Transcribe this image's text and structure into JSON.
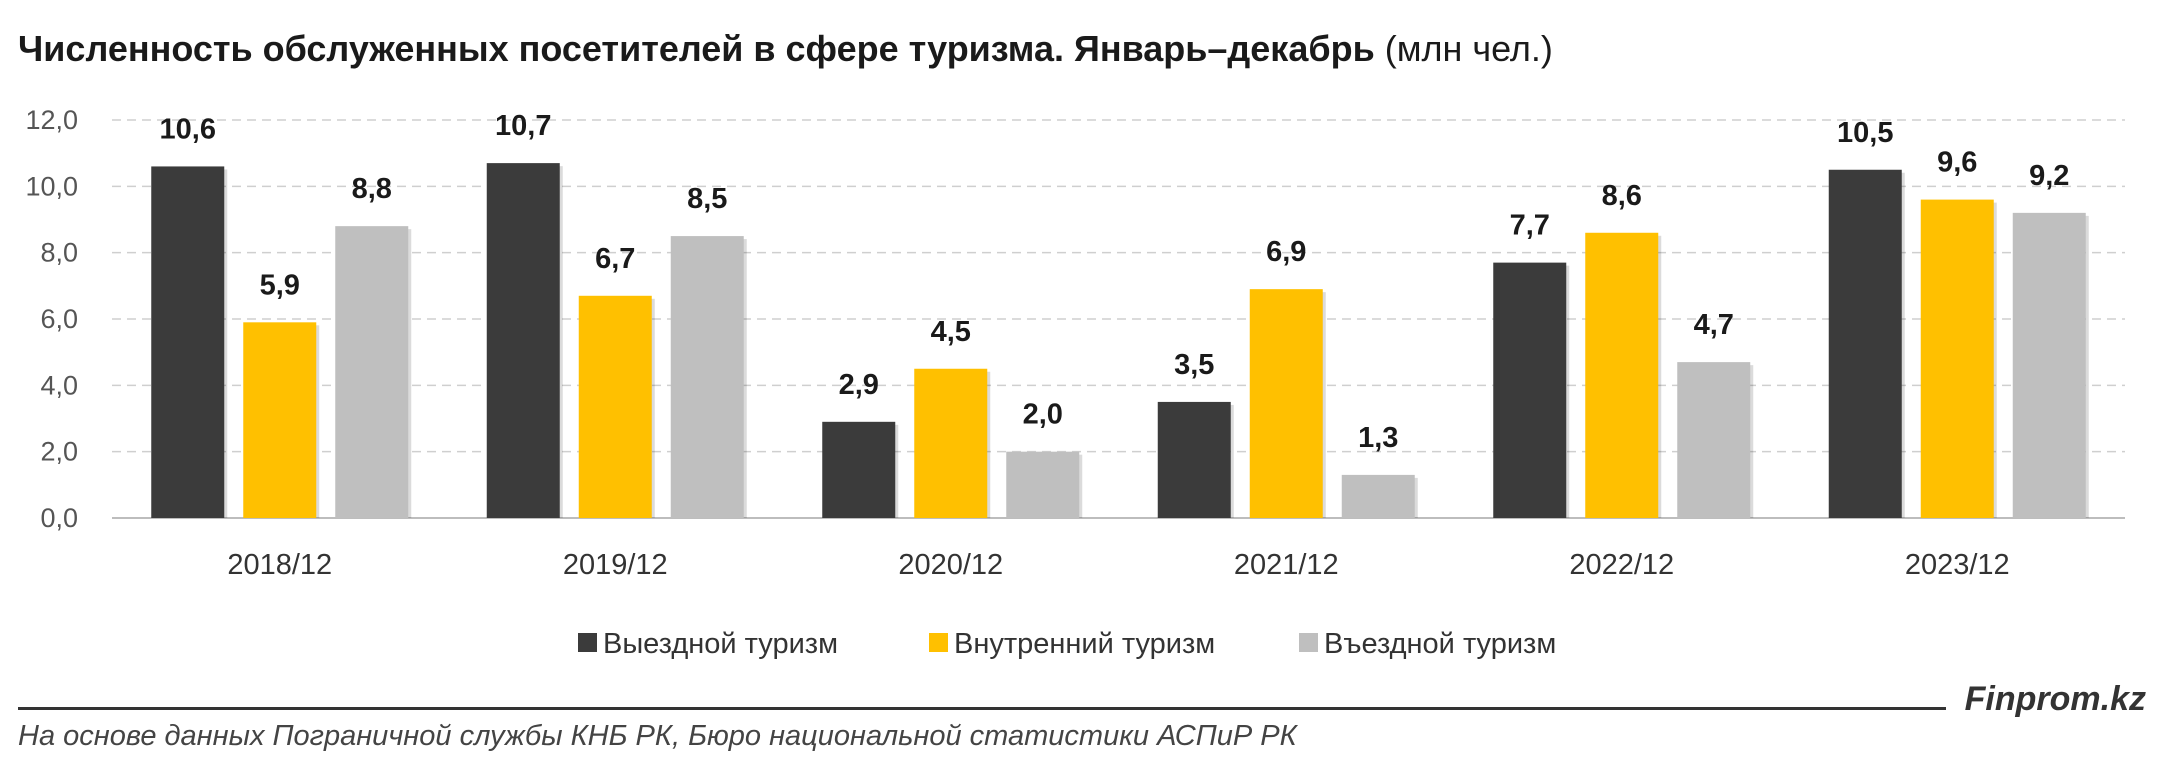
{
  "header": {
    "title_main": "Численность обслуженных посетителей в сфере туризма. Январь–декабрь",
    "title_unit": "(млн чел.)"
  },
  "chart_data": {
    "type": "bar",
    "title": "Численность обслуженных посетителей в сфере туризма. Январь–декабрь (млн чел.)",
    "xlabel": "",
    "ylabel": "",
    "ylim": [
      0,
      12
    ],
    "yticks": [
      "0,0",
      "2,0",
      "4,0",
      "6,0",
      "8,0",
      "10,0",
      "12,0"
    ],
    "grid": true,
    "legend_position": "bottom",
    "categories": [
      "2018/12",
      "2019/12",
      "2020/12",
      "2021/12",
      "2022/12",
      "2023/12"
    ],
    "series": [
      {
        "name": "Выездной туризм",
        "color": "#3b3b3b",
        "values": [
          10.6,
          10.7,
          2.9,
          3.5,
          7.7,
          10.5
        ],
        "labels": [
          "10,6",
          "10,7",
          "2,9",
          "3,5",
          "7,7",
          "10,5"
        ]
      },
      {
        "name": "Внутренний туризм",
        "color": "#ffc000",
        "values": [
          5.9,
          6.7,
          4.5,
          6.9,
          8.6,
          9.6
        ],
        "labels": [
          "5,9",
          "6,7",
          "4,5",
          "6,9",
          "8,6",
          "9,6"
        ]
      },
      {
        "name": "Въездной туризм",
        "color": "#bfbfbf",
        "values": [
          8.8,
          8.5,
          2.0,
          1.3,
          4.7,
          9.2
        ],
        "labels": [
          "8,8",
          "8,5",
          "2,0",
          "1,3",
          "4,7",
          "9,2"
        ]
      }
    ]
  },
  "footer": {
    "brand": "Finprom.kz",
    "source": "На основе данных Пограничной службы КНБ РК, Бюро национальной статистики АСПиР РК"
  }
}
